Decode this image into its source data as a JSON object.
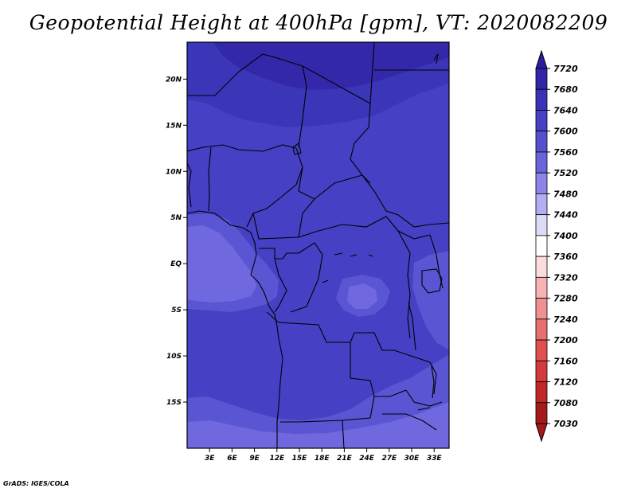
{
  "title": "Geopotential Height at 400hPa [gpm], VT: 2020082209",
  "credit": "GrADS: IGES/COLA",
  "map": {
    "lon_range": [
      0,
      35
    ],
    "lat_range": [
      -20,
      24
    ],
    "lat_ticks": [
      {
        "value": 20,
        "label": "20N"
      },
      {
        "value": 15,
        "label": "15N"
      },
      {
        "value": 10,
        "label": "10N"
      },
      {
        "value": 5,
        "label": "5N"
      },
      {
        "value": 0,
        "label": "EQ"
      },
      {
        "value": -5,
        "label": "5S"
      },
      {
        "value": -10,
        "label": "10S"
      },
      {
        "value": -15,
        "label": "15S"
      }
    ],
    "lon_ticks": [
      {
        "value": 3,
        "label": "3E"
      },
      {
        "value": 6,
        "label": "6E"
      },
      {
        "value": 9,
        "label": "9E"
      },
      {
        "value": 12,
        "label": "12E"
      },
      {
        "value": 15,
        "label": "15E"
      },
      {
        "value": 18,
        "label": "18E"
      },
      {
        "value": 21,
        "label": "21E"
      },
      {
        "value": 24,
        "label": "24E"
      },
      {
        "value": 27,
        "label": "27E"
      },
      {
        "value": 30,
        "label": "30E"
      },
      {
        "value": 33,
        "label": "33E"
      }
    ]
  },
  "colorbar": {
    "levels": [
      {
        "label": "7720",
        "color": "#2a1e9a"
      },
      {
        "label": "7680",
        "color": "#3224a8"
      },
      {
        "label": "7640",
        "color": "#3a32b6"
      },
      {
        "label": "7600",
        "color": "#4640c4"
      },
      {
        "label": "7560",
        "color": "#5550cf"
      },
      {
        "label": "7520",
        "color": "#6a64dc"
      },
      {
        "label": "7480",
        "color": "#8c84e8"
      },
      {
        "label": "7440",
        "color": "#b2aef2"
      },
      {
        "label": "7400",
        "color": "#dcdcf8"
      },
      {
        "label": "7360",
        "color": "#ffffff"
      },
      {
        "label": "7320",
        "color": "#fcdcdc"
      },
      {
        "label": "7280",
        "color": "#f8b4b4"
      },
      {
        "label": "7240",
        "color": "#f09090"
      },
      {
        "label": "7200",
        "color": "#e67070"
      },
      {
        "label": "7160",
        "color": "#e05050"
      },
      {
        "label": "7120",
        "color": "#d43a3a"
      },
      {
        "label": "7080",
        "color": "#c02828"
      },
      {
        "label": "7030",
        "color": "#a21a1a"
      }
    ]
  },
  "field_colors": {
    "c7680": "#3328aa",
    "c7640": "#3b35b8",
    "c7600": "#4640c4",
    "c7560": "#5a55d2",
    "c7520": "#7068de"
  }
}
